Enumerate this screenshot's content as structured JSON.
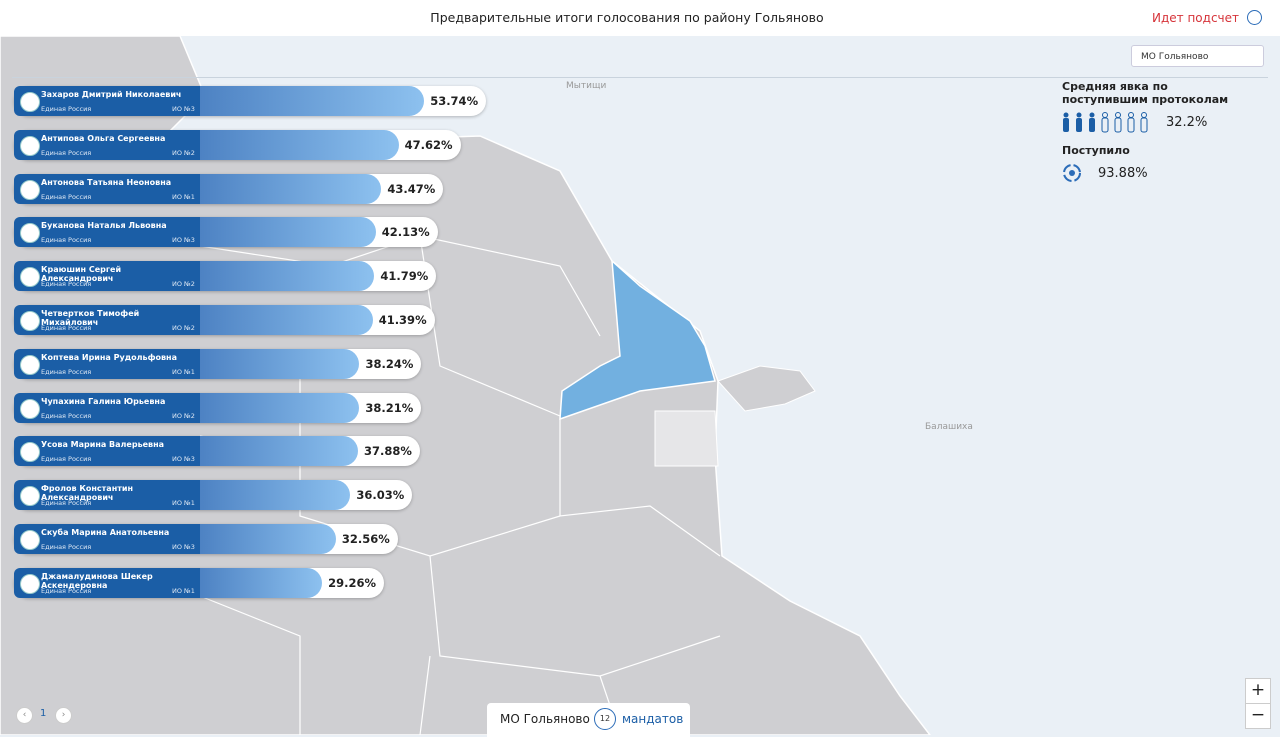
{
  "header": {
    "title": "Предварительные итоги голосования по району Гольяново",
    "status": "Идет подсчет"
  },
  "region_select": "МО Гольяново",
  "map_labels": [
    "Мытищи",
    "Балашиха"
  ],
  "stats": {
    "turnout_title": "Средняя явка по поступившим протоколам",
    "turnout": {
      "value": 32.2,
      "label": "32.2%"
    },
    "received_title": "Поступило",
    "received": {
      "value": 93.88,
      "label": "93.88%"
    }
  },
  "candidates": [
    {
      "name": "Захаров Дмитрий Николаевич",
      "party": "Единая Россия",
      "district": "ИО №3",
      "value": 53.74,
      "value_label": "53.74%"
    },
    {
      "name": "Антипова Ольга Сергеевна",
      "party": "Единая Россия",
      "district": "ИО №2",
      "value": 47.62,
      "value_label": "47.62%"
    },
    {
      "name": "Антонова Татьяна Неоновна",
      "party": "Единая Россия",
      "district": "ИО №1",
      "value": 43.47,
      "value_label": "43.47%"
    },
    {
      "name": "Буканова Наталья Львовна",
      "party": "Единая Россия",
      "district": "ИО №3",
      "value": 42.13,
      "value_label": "42.13%"
    },
    {
      "name": "Краюшин Сергей Александрович",
      "party": "Единая Россия",
      "district": "ИО №2",
      "value": 41.79,
      "value_label": "41.79%"
    },
    {
      "name": "Четвертков Тимофей Михайлович",
      "party": "Единая Россия",
      "district": "ИО №2",
      "value": 41.39,
      "value_label": "41.39%"
    },
    {
      "name": "Коптева Ирина Рудольфовна",
      "party": "Единая Россия",
      "district": "ИО №1",
      "value": 38.24,
      "value_label": "38.24%"
    },
    {
      "name": "Чупахина Галина Юрьевна",
      "party": "Единая Россия",
      "district": "ИО №2",
      "value": 38.21,
      "value_label": "38.21%"
    },
    {
      "name": "Усова Марина Валерьевна",
      "party": "Единая Россия",
      "district": "ИО №3",
      "value": 37.88,
      "value_label": "37.88%"
    },
    {
      "name": "Фролов Константин Александрович",
      "party": "Единая Россия",
      "district": "ИО №1",
      "value": 36.03,
      "value_label": "36.03%"
    },
    {
      "name": "Скуба Марина Анатольевна",
      "party": "Единая Россия",
      "district": "ИО №3",
      "value": 32.56,
      "value_label": "32.56%"
    },
    {
      "name": "Джамалудинова Шекер Аскендеровна",
      "party": "Единая Россия",
      "district": "ИО №1",
      "value": 29.26,
      "value_label": "29.26%"
    }
  ],
  "pagination": {
    "page": "1"
  },
  "footer": {
    "district": "МО Гольяново",
    "mandates": 12,
    "mandates_label": "мандатов"
  },
  "zoom": {
    "in": "+",
    "out": "−"
  }
}
